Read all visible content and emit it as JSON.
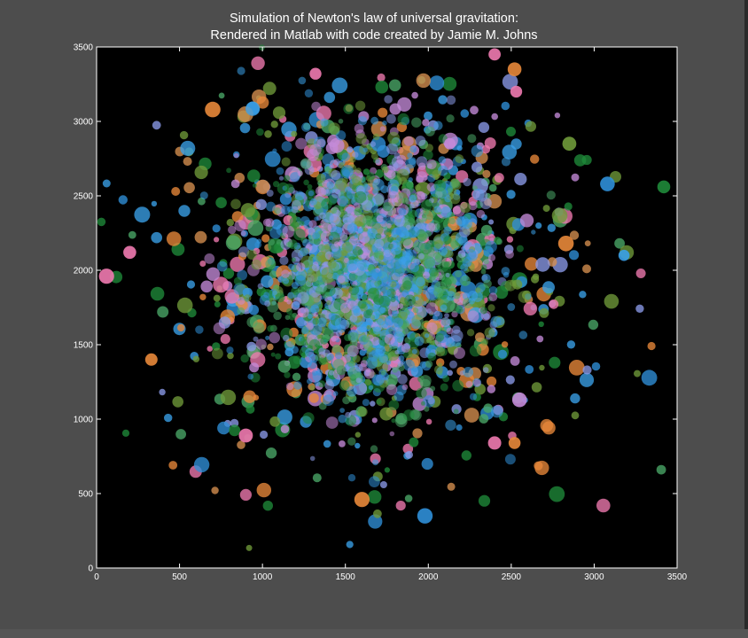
{
  "window": {
    "background": "#4d4d4d"
  },
  "chart_data": {
    "type": "scatter",
    "title": "Simulation of Newton's law of universal gravitation:",
    "subtitle": "Rendered in Matlab with code created by Jamie M. Johns",
    "xlabel": "",
    "ylabel": "",
    "xlim": [
      0,
      3500
    ],
    "ylim": [
      0,
      3500
    ],
    "x_ticks": [
      "0",
      "500",
      "1000",
      "1500",
      "2000",
      "2500",
      "3000",
      "3500"
    ],
    "y_ticks": [
      "0",
      "500",
      "1000",
      "1500",
      "2000",
      "2500",
      "3000",
      "3500"
    ],
    "grid": false,
    "plot_background": "#000000",
    "cluster_center": [
      1650,
      2000
    ],
    "point_colors": [
      "#2f8fd8",
      "#3aa0e8",
      "#1f8a3a",
      "#6f9a3a",
      "#e8883a",
      "#f07ab0",
      "#c48ad8",
      "#8a9ae8",
      "#d69050",
      "#4aa868"
    ],
    "sample_points": [
      {
        "x": 3420,
        "y": 2560,
        "color": "#1f8a3a"
      },
      {
        "x": 60,
        "y": 1960,
        "color": "#f07ab0"
      },
      {
        "x": 2520,
        "y": 3350,
        "color": "#e8883a"
      },
      {
        "x": 2530,
        "y": 3200,
        "color": "#f07ab0"
      },
      {
        "x": 2400,
        "y": 3450,
        "color": "#f07ab0"
      },
      {
        "x": 1980,
        "y": 350,
        "color": "#2f8fd8"
      },
      {
        "x": 2400,
        "y": 840,
        "color": "#f07ab0"
      },
      {
        "x": 2520,
        "y": 840,
        "color": "#e8883a"
      },
      {
        "x": 2850,
        "y": 2850,
        "color": "#6f9a3a"
      },
      {
        "x": 3080,
        "y": 2580,
        "color": "#2f8fd8"
      },
      {
        "x": 330,
        "y": 1400,
        "color": "#e8883a"
      },
      {
        "x": 900,
        "y": 890,
        "color": "#f07ab0"
      },
      {
        "x": 1600,
        "y": 460,
        "color": "#e8883a"
      },
      {
        "x": 2130,
        "y": 2850,
        "color": "#c48ad8"
      },
      {
        "x": 700,
        "y": 3080,
        "color": "#e8883a"
      },
      {
        "x": 2830,
        "y": 2180,
        "color": "#e8883a"
      },
      {
        "x": 3180,
        "y": 2100,
        "color": "#3aa0e8"
      },
      {
        "x": 200,
        "y": 2120,
        "color": "#f07ab0"
      },
      {
        "x": 2550,
        "y": 1130,
        "color": "#c48ad8"
      },
      {
        "x": 1320,
        "y": 3320,
        "color": "#f07ab0"
      }
    ]
  }
}
